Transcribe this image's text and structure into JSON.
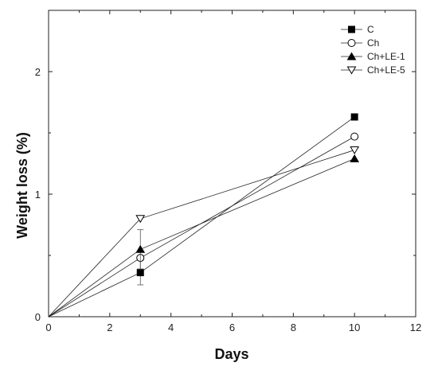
{
  "chart_data": {
    "type": "line",
    "title": "",
    "xlabel": "Days",
    "ylabel": "Weight loss (%)",
    "xlim": [
      0,
      12
    ],
    "ylim": [
      0,
      2.5
    ],
    "xticks": [
      0,
      2,
      4,
      6,
      8,
      10,
      12
    ],
    "xtick_labels": [
      "0",
      "2",
      "4",
      "6",
      "8",
      "10",
      "12"
    ],
    "yticks": [
      0,
      1,
      2
    ],
    "ytick_labels": [
      "0",
      "1",
      "2"
    ],
    "grid": false,
    "legend_position": "top-right",
    "x": [
      0,
      3,
      10
    ],
    "series": [
      {
        "name": "C",
        "marker": "filled-square",
        "values": [
          0,
          0.36,
          1.63
        ],
        "errors": [
          0,
          0.1,
          0
        ]
      },
      {
        "name": "Ch",
        "marker": "open-circle",
        "values": [
          0,
          0.48,
          1.47
        ],
        "errors": [
          0,
          0.0,
          0
        ]
      },
      {
        "name": "Ch+LE-1",
        "marker": "filled-triangle-up",
        "values": [
          0,
          0.55,
          1.29
        ],
        "errors": [
          0,
          0.16,
          0
        ]
      },
      {
        "name": "Ch+LE-5",
        "marker": "open-triangle-down",
        "values": [
          0,
          0.8,
          1.36
        ],
        "errors": [
          0,
          0.0,
          0
        ]
      }
    ]
  }
}
